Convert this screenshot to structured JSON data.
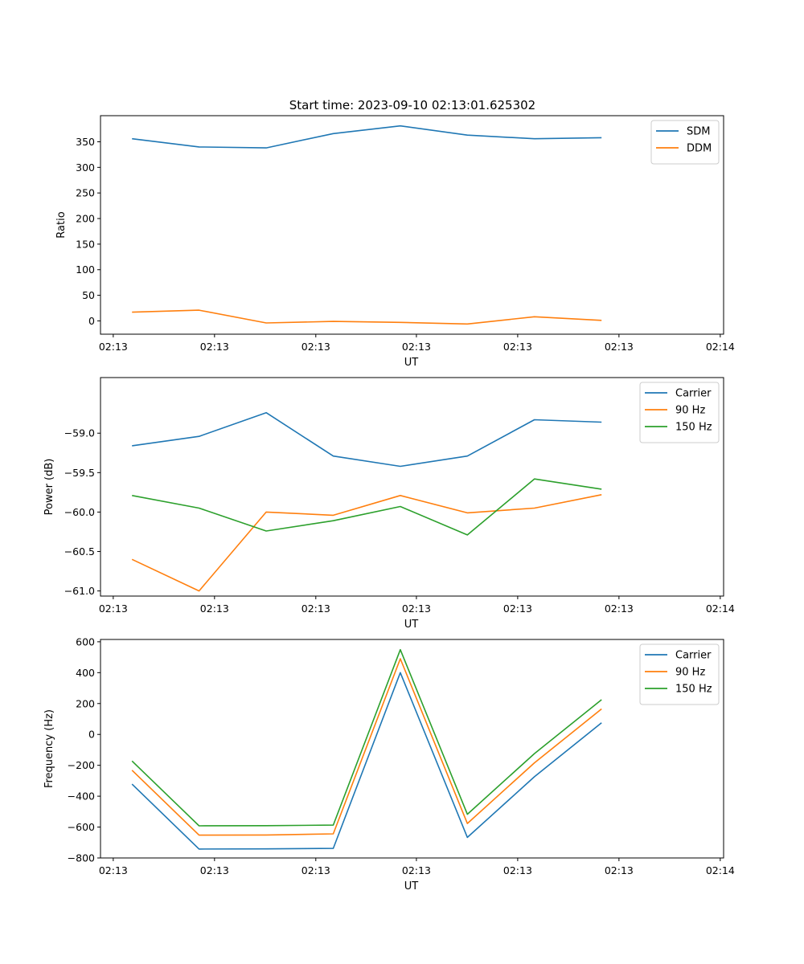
{
  "figure_title": "Start time: 2023-09-10 02:13:01.625302",
  "colors": {
    "blue": "#1f77b4",
    "orange": "#ff7f0e",
    "green": "#2ca02c"
  },
  "chart_data": [
    {
      "type": "line",
      "title": "Start time: 2023-09-10 02:13:01.625302",
      "xlabel": "UT",
      "ylabel": "Ratio",
      "x": [
        1,
        2,
        3,
        4,
        5,
        6,
        7,
        8
      ],
      "xlim": [
        0.53,
        9.82
      ],
      "xticks": [
        0.72,
        2.23,
        3.74,
        5.24,
        6.75,
        8.26,
        9.77
      ],
      "xtick_labels": [
        "02:13",
        "02:13",
        "02:13",
        "02:13",
        "02:13",
        "02:13",
        "02:14"
      ],
      "ylim": [
        -26,
        401
      ],
      "yticks": [
        0,
        50,
        100,
        150,
        200,
        250,
        300,
        350
      ],
      "ytick_labels": [
        "0",
        "50",
        "100",
        "150",
        "200",
        "250",
        "300",
        "350"
      ],
      "legend_position": "top-right",
      "series": [
        {
          "name": "SDM",
          "color": "#1f77b4",
          "values": [
            356,
            340,
            338,
            366,
            381,
            363,
            356,
            358
          ]
        },
        {
          "name": "DDM",
          "color": "#ff7f0e",
          "values": [
            17,
            21,
            -4,
            -1,
            -3,
            -6,
            8,
            1
          ]
        }
      ]
    },
    {
      "type": "line",
      "title": "",
      "xlabel": "UT",
      "ylabel": "Power (dB)",
      "x": [
        1,
        2,
        3,
        4,
        5,
        6,
        7,
        8
      ],
      "xlim": [
        0.53,
        9.82
      ],
      "xticks": [
        0.72,
        2.23,
        3.74,
        5.24,
        6.75,
        8.26,
        9.77
      ],
      "xtick_labels": [
        "02:13",
        "02:13",
        "02:13",
        "02:13",
        "02:13",
        "02:13",
        "02:14"
      ],
      "ylim": [
        -61.065,
        -58.295
      ],
      "yticks": [
        -61.0,
        -60.5,
        -60.0,
        -59.5,
        -59.0
      ],
      "ytick_labels": [
        "−61.0",
        "−60.5",
        "−60.0",
        "−59.5",
        "−59.0"
      ],
      "legend_position": "top-right",
      "series": [
        {
          "name": "Carrier",
          "color": "#1f77b4",
          "values": [
            -59.16,
            -59.04,
            -58.74,
            -59.29,
            -59.42,
            -59.29,
            -58.83,
            -58.86
          ]
        },
        {
          "name": "90 Hz",
          "color": "#ff7f0e",
          "values": [
            -60.6,
            -61.0,
            -60.0,
            -60.04,
            -59.79,
            -60.01,
            -59.95,
            -59.78
          ]
        },
        {
          "name": "150 Hz",
          "color": "#2ca02c",
          "values": [
            -59.79,
            -59.95,
            -60.24,
            -60.11,
            -59.93,
            -60.29,
            -59.58,
            -59.71
          ]
        }
      ]
    },
    {
      "type": "line",
      "title": "",
      "xlabel": "UT",
      "ylabel": "Frequency (Hz)",
      "x": [
        1,
        2,
        3,
        4,
        5,
        6,
        7,
        8
      ],
      "xlim": [
        0.53,
        9.82
      ],
      "xticks": [
        0.72,
        2.23,
        3.74,
        5.24,
        6.75,
        8.26,
        9.77
      ],
      "xtick_labels": [
        "02:13",
        "02:13",
        "02:13",
        "02:13",
        "02:13",
        "02:13",
        "02:14"
      ],
      "ylim": [
        -800,
        615
      ],
      "yticks": [
        -800,
        -600,
        -400,
        -200,
        0,
        200,
        400,
        600
      ],
      "ytick_labels": [
        "−800",
        "−600",
        "−400",
        "−200",
        "0",
        "200",
        "400",
        "600"
      ],
      "legend_position": "top-right",
      "series": [
        {
          "name": "Carrier",
          "color": "#1f77b4",
          "values": [
            -322,
            -742,
            -741,
            -738,
            400,
            -667,
            -274,
            75
          ]
        },
        {
          "name": "90 Hz",
          "color": "#ff7f0e",
          "values": [
            -232,
            -652,
            -651,
            -644,
            490,
            -577,
            -184,
            165
          ]
        },
        {
          "name": "150 Hz",
          "color": "#2ca02c",
          "values": [
            -172,
            -592,
            -591,
            -587,
            549,
            -517,
            -124,
            225
          ]
        }
      ]
    }
  ]
}
